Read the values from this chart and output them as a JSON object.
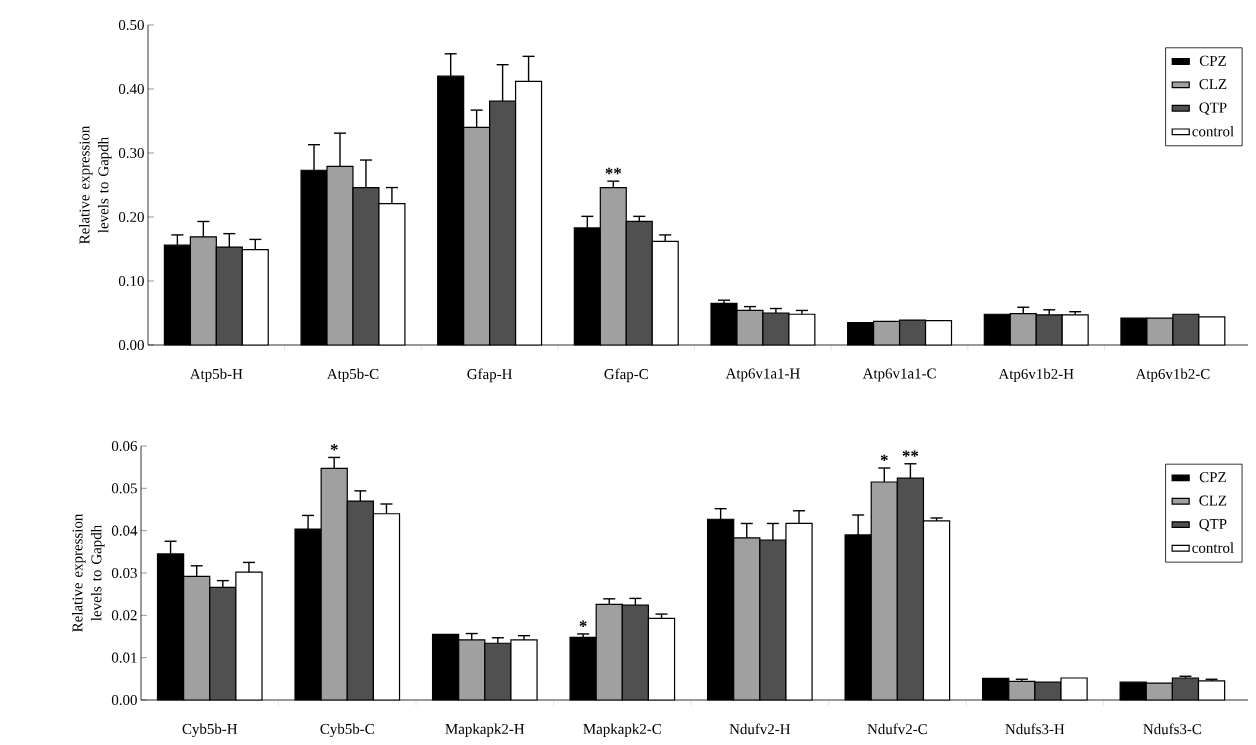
{
  "chart_data": [
    {
      "type": "bar",
      "ylabel": "Relative expression levels to Gapdh",
      "categories": [
        "Atp5b-H",
        "Atp5b-C",
        "Gfap-H",
        "Gfap-C",
        "Atp6v1a1-H",
        "Atp6v1a1-C",
        "Atp6v1b2-H",
        "Atp6v1b2-C"
      ],
      "series": [
        {
          "name": "CPZ",
          "color": "#000000",
          "values": [
            0.156,
            0.273,
            0.42,
            0.183,
            0.065,
            0.035,
            0.048,
            0.042
          ],
          "errors": [
            0.016,
            0.04,
            0.035,
            0.018,
            0.005,
            null,
            null,
            null
          ]
        },
        {
          "name": "CLZ",
          "color": "#a0a0a0",
          "values": [
            0.169,
            0.279,
            0.34,
            0.246,
            0.054,
            0.037,
            0.049,
            0.042
          ],
          "errors": [
            0.024,
            0.052,
            0.027,
            0.01,
            0.006,
            null,
            0.01,
            null
          ]
        },
        {
          "name": "QTP",
          "color": "#505050",
          "values": [
            0.153,
            0.246,
            0.381,
            0.193,
            0.05,
            0.039,
            0.047,
            0.048
          ],
          "errors": [
            0.021,
            0.043,
            0.057,
            0.008,
            0.007,
            null,
            0.008,
            null
          ]
        },
        {
          "name": "control",
          "color": "#ffffff",
          "values": [
            0.149,
            0.221,
            0.412,
            0.162,
            0.048,
            0.038,
            0.047,
            0.044
          ],
          "errors": [
            0.016,
            0.025,
            0.039,
            0.01,
            0.006,
            null,
            0.005,
            null
          ]
        }
      ],
      "ylim": [
        0,
        0.5
      ],
      "yticks": [
        {
          "value": 0,
          "label": "0.00"
        },
        {
          "value": 0.1,
          "label": "0.10"
        },
        {
          "value": 0.2,
          "label": "0.20"
        },
        {
          "value": 0.3,
          "label": "0.30"
        },
        {
          "value": 0.4,
          "label": "0.40"
        },
        {
          "value": 0.5,
          "label": "0.50"
        }
      ],
      "annotations": [
        {
          "text": "**",
          "x": "Gfap-C",
          "y": 0.246
        }
      ],
      "legend": "top right"
    },
    {
      "type": "bar",
      "ylabel": "Relative expression levels to Gapdh",
      "categories": [
        "Cyb5b-H",
        "Cyb5b-C",
        "Mapkapk2-H",
        "Mapkapk2-C",
        "Ndufv2-H",
        "Ndufv2-C",
        "Ndufs3-H",
        "Ndufs3-C"
      ],
      "series": [
        {
          "name": "CPZ",
          "color": "#000000",
          "values": [
            0.0345,
            0.0404,
            0.0155,
            0.0148,
            0.0427,
            0.039,
            0.0051,
            0.0042
          ],
          "errors": [
            0.003,
            0.0032,
            null,
            0.0008,
            0.0025,
            0.0047,
            null,
            null
          ]
        },
        {
          "name": "CLZ",
          "color": "#a0a0a0",
          "values": [
            0.0292,
            0.0547,
            0.0142,
            0.0226,
            0.0383,
            0.0515,
            0.0044,
            0.004
          ],
          "errors": [
            0.0025,
            0.0026,
            0.0015,
            0.0013,
            0.0034,
            0.0033,
            0.0005,
            null
          ]
        },
        {
          "name": "QTP",
          "color": "#505050",
          "values": [
            0.0266,
            0.047,
            0.0134,
            0.0224,
            0.0378,
            0.0524,
            0.0042,
            0.0052
          ],
          "errors": [
            0.0016,
            0.0024,
            0.0013,
            0.0016,
            0.0039,
            0.0034,
            null,
            0.0004
          ]
        },
        {
          "name": "control",
          "color": "#ffffff",
          "values": [
            0.0302,
            0.044,
            0.0142,
            0.0193,
            0.0417,
            0.0423,
            0.0052,
            0.0045
          ],
          "errors": [
            0.0023,
            0.0023,
            0.001,
            0.001,
            0.003,
            0.0007,
            null,
            0.0004
          ]
        }
      ],
      "ylim": [
        0,
        0.06
      ],
      "yticks": [
        {
          "value": 0,
          "label": "0.00"
        },
        {
          "value": 0.01,
          "label": "0.01"
        },
        {
          "value": 0.02,
          "label": "0.02"
        },
        {
          "value": 0.03,
          "label": "0.03"
        },
        {
          "value": 0.04,
          "label": "0.04"
        },
        {
          "value": 0.05,
          "label": "0.05"
        },
        {
          "value": 0.06,
          "label": "0.06"
        }
      ],
      "annotations": [
        {
          "text": "*",
          "x": "Cyb5b-C",
          "y": 0.0547
        },
        {
          "text": "*",
          "x": "Mapkapk2-C",
          "y": 0.0148
        },
        {
          "text": "*",
          "x": "Ndufv2-C",
          "y": 0.0515
        },
        {
          "text": "**",
          "x": "Ndufv2-C",
          "y": 0.0524
        }
      ],
      "legend": "top right"
    }
  ]
}
